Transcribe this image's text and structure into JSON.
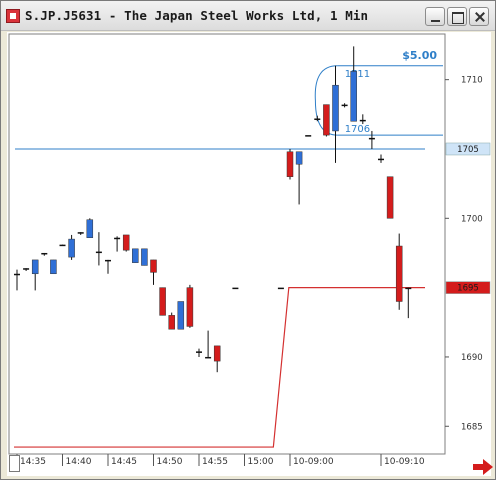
{
  "window": {
    "title": "S.JP.J5631 - The Japan Steel Works Ltd, 1 Min"
  },
  "colors": {
    "up": "#2f6fd6",
    "down": "#d41c1c",
    "neutral": "#111111",
    "level_line": "#2f7fc8",
    "equity_line": "#d43030"
  },
  "icons": {
    "app": "app-icon",
    "minimize": "minimize-icon",
    "maximize": "maximize-icon",
    "close": "close-icon",
    "next": "arrow-right-icon"
  },
  "chart_data": {
    "type": "candlestick",
    "ylim": [
      1683,
      1712.5
    ],
    "y_ticks": [
      1710,
      1700,
      1690,
      1685
    ],
    "y_tick_labels": [
      "1710",
      "1700",
      "1690",
      "1685"
    ],
    "x_tick_labels": [
      "14:35",
      "14:40",
      "14:45",
      "14:50",
      "14:55",
      "15:00",
      "10-09:00",
      "10-09:10"
    ],
    "x_tick_index": [
      0,
      5,
      10,
      15,
      20,
      25,
      30,
      40
    ],
    "candles": [
      {
        "i": 0,
        "o": 1696.0,
        "h": 1696.3,
        "l": 1694.8,
        "c": 1696.0,
        "kind": "neutral"
      },
      {
        "i": 1,
        "o": 1696.4,
        "h": 1696.4,
        "l": 1696.2,
        "c": 1696.4,
        "kind": "neutral"
      },
      {
        "i": 2,
        "o": 1696.0,
        "h": 1696.8,
        "l": 1694.8,
        "c": 1697.0,
        "kind": "up"
      },
      {
        "i": 3,
        "o": 1697.5,
        "h": 1697.5,
        "l": 1697.3,
        "c": 1697.5,
        "kind": "neutral"
      },
      {
        "i": 4,
        "o": 1696.0,
        "h": 1697.0,
        "l": 1696.0,
        "c": 1697.0,
        "kind": "up"
      },
      {
        "i": 5,
        "o": 1698.1,
        "h": 1698.1,
        "l": 1698.0,
        "c": 1698.1,
        "kind": "neutral"
      },
      {
        "i": 6,
        "o": 1697.2,
        "h": 1698.8,
        "l": 1697.0,
        "c": 1698.5,
        "kind": "up"
      },
      {
        "i": 7,
        "o": 1699.0,
        "h": 1699.0,
        "l": 1698.8,
        "c": 1699.0,
        "kind": "neutral"
      },
      {
        "i": 8,
        "o": 1698.6,
        "h": 1700.0,
        "l": 1698.6,
        "c": 1699.9,
        "kind": "up"
      },
      {
        "i": 9,
        "o": 1697.6,
        "h": 1699.0,
        "l": 1696.6,
        "c": 1697.5,
        "kind": "neutral"
      },
      {
        "i": 10,
        "o": 1697.0,
        "h": 1697.0,
        "l": 1696.0,
        "c": 1696.8,
        "kind": "neutral"
      },
      {
        "i": 11,
        "o": 1698.6,
        "h": 1698.7,
        "l": 1697.6,
        "c": 1698.5,
        "kind": "neutral"
      },
      {
        "i": 12,
        "o": 1698.8,
        "h": 1698.8,
        "l": 1697.6,
        "c": 1697.7,
        "kind": "down"
      },
      {
        "i": 13,
        "o": 1696.8,
        "h": 1697.8,
        "l": 1696.8,
        "c": 1697.8,
        "kind": "up"
      },
      {
        "i": 14,
        "o": 1696.6,
        "h": 1697.8,
        "l": 1696.6,
        "c": 1697.8,
        "kind": "up"
      },
      {
        "i": 15,
        "o": 1697.0,
        "h": 1697.0,
        "l": 1695.2,
        "c": 1696.1,
        "kind": "down"
      },
      {
        "i": 16,
        "o": 1695.0,
        "h": 1695.0,
        "l": 1693.0,
        "c": 1693.0,
        "kind": "down"
      },
      {
        "i": 17,
        "o": 1693.0,
        "h": 1693.2,
        "l": 1692.0,
        "c": 1692.0,
        "kind": "down"
      },
      {
        "i": 18,
        "o": 1692.0,
        "h": 1694.0,
        "l": 1692.0,
        "c": 1694.0,
        "kind": "up"
      },
      {
        "i": 19,
        "o": 1695.0,
        "h": 1695.2,
        "l": 1692.1,
        "c": 1692.2,
        "kind": "down"
      },
      {
        "i": 20,
        "o": 1690.4,
        "h": 1690.6,
        "l": 1690.0,
        "c": 1690.3,
        "kind": "neutral"
      },
      {
        "i": 21,
        "o": 1690.0,
        "h": 1691.9,
        "l": 1690.0,
        "c": 1690.0,
        "kind": "neutral"
      },
      {
        "i": 22,
        "o": 1690.8,
        "h": 1690.8,
        "l": 1688.9,
        "c": 1689.7,
        "kind": "down"
      },
      {
        "i": 24,
        "o": 1695.0,
        "h": 1695.0,
        "l": 1695.0,
        "c": 1695.0,
        "kind": "neutral"
      },
      {
        "i": 29,
        "o": 1695.0,
        "h": 1695.0,
        "l": 1695.0,
        "c": 1695.0,
        "kind": "neutral"
      },
      {
        "i": 30,
        "o": 1704.8,
        "h": 1705.0,
        "l": 1702.8,
        "c": 1703.0,
        "kind": "down"
      },
      {
        "i": 31,
        "o": 1703.9,
        "h": 1704.8,
        "l": 1701.0,
        "c": 1704.8,
        "kind": "up"
      },
      {
        "i": 32,
        "o": 1706.0,
        "h": 1706.0,
        "l": 1706.0,
        "c": 1706.0,
        "kind": "neutral"
      },
      {
        "i": 33,
        "o": 1707.2,
        "h": 1707.4,
        "l": 1707.0,
        "c": 1707.2,
        "kind": "neutral"
      },
      {
        "i": 34,
        "o": 1708.2,
        "h": 1708.2,
        "l": 1705.9,
        "c": 1706.0,
        "kind": "down"
      },
      {
        "i": 35,
        "o": 1706.3,
        "h": 1711.0,
        "l": 1704.0,
        "c": 1709.6,
        "kind": "up"
      },
      {
        "i": 36,
        "o": 1708.2,
        "h": 1708.3,
        "l": 1708.0,
        "c": 1708.2,
        "kind": "neutral"
      },
      {
        "i": 37,
        "o": 1707.0,
        "h": 1712.4,
        "l": 1707.0,
        "c": 1710.6,
        "kind": "up"
      },
      {
        "i": 38,
        "o": 1707.1,
        "h": 1707.5,
        "l": 1706.8,
        "c": 1707.1,
        "kind": "neutral"
      },
      {
        "i": 39,
        "o": 1705.8,
        "h": 1706.3,
        "l": 1705.0,
        "c": 1705.0,
        "kind": "neutral"
      },
      {
        "i": 40,
        "o": 1704.2,
        "h": 1704.6,
        "l": 1704.0,
        "c": 1704.3,
        "kind": "neutral"
      },
      {
        "i": 41,
        "o": 1703.0,
        "h": 1703.0,
        "l": 1700.0,
        "c": 1700.0,
        "kind": "down"
      },
      {
        "i": 42,
        "o": 1698.0,
        "h": 1698.9,
        "l": 1693.4,
        "c": 1694.0,
        "kind": "down"
      },
      {
        "i": 43,
        "o": 1695.0,
        "h": 1695.0,
        "l": 1692.8,
        "c": 1695.0,
        "kind": "neutral"
      }
    ],
    "annotations": {
      "profit_label": "$5.00",
      "high_label": "1711",
      "level_label": "1706",
      "high_level": 1711.0,
      "level": 1706.0,
      "horizontal_line": 1705.0,
      "horizontal_line_label": "1705",
      "current_price": 1695.0,
      "current_price_label": "1695"
    },
    "equity_line": {
      "before_value": 1683.5,
      "after_value": 1695.0,
      "step_from_index": 28.5,
      "step_to_index": 30.2
    }
  }
}
